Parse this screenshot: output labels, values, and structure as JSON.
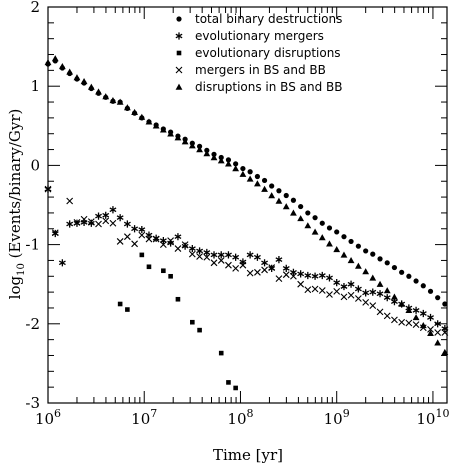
{
  "chart_data": {
    "type": "scatter",
    "xscale": "log",
    "xlim": [
      1000000,
      14000000000
    ],
    "ylim": [
      -3,
      2
    ],
    "xlabel": "Time [yr]",
    "ylabel": "log10 (Events/binary/Gyr)",
    "ylabel_parts": {
      "pre": "log",
      "sub": "10",
      "post": " (Events/binary/Gyr)"
    },
    "x_ticks": [
      {
        "value": 1000000,
        "base": "10",
        "exp": "6"
      },
      {
        "value": 10000000,
        "base": "10",
        "exp": "7"
      },
      {
        "value": 100000000,
        "base": "10",
        "exp": "8"
      },
      {
        "value": 1000000000,
        "base": "10",
        "exp": "9"
      },
      {
        "value": 10000000000,
        "base": "10",
        "exp": "10"
      }
    ],
    "y_ticks": [
      {
        "value": -3,
        "label": "-3"
      },
      {
        "value": -2,
        "label": "-2"
      },
      {
        "value": -1,
        "label": "-1"
      },
      {
        "value": 0,
        "label": "0"
      },
      {
        "value": 1,
        "label": "1"
      },
      {
        "value": 2,
        "label": "2"
      }
    ],
    "legend_position": "top-right",
    "grid": false,
    "series": [
      {
        "name": "total binary destructions",
        "marker": "circle",
        "points": [
          [
            1000000,
            1.28
          ],
          [
            1190000,
            1.32
          ],
          [
            1410000,
            1.23
          ],
          [
            1680000,
            1.16
          ],
          [
            2000000,
            1.09
          ],
          [
            2370000,
            1.04
          ],
          [
            2820000,
            0.97
          ],
          [
            3350000,
            0.91
          ],
          [
            3980000,
            0.86
          ],
          [
            4730000,
            0.81
          ],
          [
            5620000,
            0.8
          ],
          [
            6680000,
            0.72
          ],
          [
            7940000,
            0.66
          ],
          [
            9440000,
            0.6
          ],
          [
            11200000,
            0.55
          ],
          [
            13300000,
            0.51
          ],
          [
            15800000,
            0.46
          ],
          [
            18800000,
            0.42
          ],
          [
            22400000,
            0.37
          ],
          [
            26600000,
            0.33
          ],
          [
            31600000,
            0.28
          ],
          [
            37600000,
            0.24
          ],
          [
            44700000,
            0.19
          ],
          [
            53100000,
            0.14
          ],
          [
            63100000,
            0.1
          ],
          [
            75000000,
            0.07
          ],
          [
            89100000,
            0.02
          ],
          [
            106000000,
            -0.04
          ],
          [
            126000000,
            -0.08
          ],
          [
            150000000,
            -0.14
          ],
          [
            178000000,
            -0.19
          ],
          [
            211000000,
            -0.26
          ],
          [
            251000000,
            -0.32
          ],
          [
            299000000,
            -0.38
          ],
          [
            355000000,
            -0.44
          ],
          [
            422000000,
            -0.52
          ],
          [
            501000000,
            -0.6
          ],
          [
            596000000,
            -0.66
          ],
          [
            708000000,
            -0.73
          ],
          [
            841000000,
            -0.79
          ],
          [
            1000000000,
            -0.84
          ],
          [
            1190000000,
            -0.9
          ],
          [
            1410000000,
            -0.96
          ],
          [
            1680000000,
            -1.02
          ],
          [
            2000000000,
            -1.08
          ],
          [
            2370000000,
            -1.12
          ],
          [
            2820000000,
            -1.18
          ],
          [
            3350000000,
            -1.23
          ],
          [
            3980000000,
            -1.29
          ],
          [
            4730000000,
            -1.35
          ],
          [
            5620000000,
            -1.4
          ],
          [
            6680000000,
            -1.46
          ],
          [
            7940000000,
            -1.52
          ],
          [
            9440000000,
            -1.59
          ],
          [
            11200000000,
            -1.67
          ],
          [
            13300000000,
            -1.75
          ]
        ]
      },
      {
        "name": "evolutionary mergers",
        "marker": "asterisk",
        "points": [
          [
            1000000,
            -0.3
          ],
          [
            1190000,
            -0.86
          ],
          [
            1410000,
            -1.23
          ],
          [
            1680000,
            -0.74
          ],
          [
            2000000,
            -0.73
          ],
          [
            2370000,
            -0.72
          ],
          [
            2820000,
            -0.73
          ],
          [
            3350000,
            -0.64
          ],
          [
            3980000,
            -0.63
          ],
          [
            4730000,
            -0.56
          ],
          [
            5620000,
            -0.66
          ],
          [
            6680000,
            -0.74
          ],
          [
            7940000,
            -0.8
          ],
          [
            9440000,
            -0.81
          ],
          [
            11200000,
            -0.88
          ],
          [
            13300000,
            -0.92
          ],
          [
            15800000,
            -0.95
          ],
          [
            18800000,
            -0.98
          ],
          [
            22400000,
            -0.9
          ],
          [
            26600000,
            -1.02
          ],
          [
            31600000,
            -1.05
          ],
          [
            37600000,
            -1.08
          ],
          [
            44700000,
            -1.1
          ],
          [
            53100000,
            -1.13
          ],
          [
            63100000,
            -1.13
          ],
          [
            75000000,
            -1.13
          ],
          [
            89100000,
            -1.16
          ],
          [
            106000000,
            -1.22
          ],
          [
            126000000,
            -1.13
          ],
          [
            150000000,
            -1.16
          ],
          [
            178000000,
            -1.23
          ],
          [
            211000000,
            -1.3
          ],
          [
            251000000,
            -1.19
          ],
          [
            299000000,
            -1.3
          ],
          [
            355000000,
            -1.35
          ],
          [
            422000000,
            -1.37
          ],
          [
            501000000,
            -1.39
          ],
          [
            596000000,
            -1.4
          ],
          [
            708000000,
            -1.39
          ],
          [
            841000000,
            -1.42
          ],
          [
            1000000000,
            -1.48
          ],
          [
            1190000000,
            -1.53
          ],
          [
            1410000000,
            -1.5
          ],
          [
            1680000000,
            -1.56
          ],
          [
            2000000000,
            -1.61
          ],
          [
            2370000000,
            -1.6
          ],
          [
            2820000000,
            -1.62
          ],
          [
            3350000000,
            -1.67
          ],
          [
            3980000000,
            -1.72
          ],
          [
            4730000000,
            -1.75
          ],
          [
            5620000000,
            -1.8
          ],
          [
            6680000000,
            -1.83
          ],
          [
            7940000000,
            -1.87
          ],
          [
            9440000000,
            -1.92
          ],
          [
            11200000000,
            -2.0
          ],
          [
            13300000000,
            -2.06
          ]
        ]
      },
      {
        "name": "evolutionary disruptions",
        "marker": "square",
        "points": [
          [
            5620000,
            -1.75
          ],
          [
            6680000,
            -1.82
          ],
          [
            9440000,
            -1.13
          ],
          [
            11200000,
            -1.28
          ],
          [
            15800000,
            -1.33
          ],
          [
            18800000,
            -1.4
          ],
          [
            22400000,
            -1.69
          ],
          [
            31600000,
            -1.98
          ],
          [
            37600000,
            -2.08
          ],
          [
            63100000,
            -2.37
          ],
          [
            75000000,
            -2.74
          ],
          [
            89100000,
            -2.81
          ]
        ]
      },
      {
        "name": "mergers in BS and BB",
        "marker": "cross",
        "points": [
          [
            1000000,
            -0.3
          ],
          [
            1190000,
            -0.85
          ],
          [
            1680000,
            -0.45
          ],
          [
            2000000,
            -0.72
          ],
          [
            2370000,
            -0.68
          ],
          [
            2820000,
            -0.71
          ],
          [
            3350000,
            -0.74
          ],
          [
            3980000,
            -0.7
          ],
          [
            4730000,
            -0.73
          ],
          [
            5620000,
            -0.96
          ],
          [
            6680000,
            -0.9
          ],
          [
            7940000,
            -0.99
          ],
          [
            9440000,
            -0.88
          ],
          [
            11200000,
            -0.93
          ],
          [
            13300000,
            -0.93
          ],
          [
            15800000,
            -1.0
          ],
          [
            18800000,
            -0.95
          ],
          [
            22400000,
            -1.05
          ],
          [
            26600000,
            -1.0
          ],
          [
            31600000,
            -1.12
          ],
          [
            37600000,
            -1.15
          ],
          [
            44700000,
            -1.16
          ],
          [
            53100000,
            -1.23
          ],
          [
            63100000,
            -1.2
          ],
          [
            75000000,
            -1.26
          ],
          [
            89100000,
            -1.3
          ],
          [
            106000000,
            -1.26
          ],
          [
            126000000,
            -1.36
          ],
          [
            150000000,
            -1.35
          ],
          [
            178000000,
            -1.32
          ],
          [
            211000000,
            -1.29
          ],
          [
            251000000,
            -1.43
          ],
          [
            299000000,
            -1.38
          ],
          [
            355000000,
            -1.4
          ],
          [
            422000000,
            -1.5
          ],
          [
            501000000,
            -1.57
          ],
          [
            596000000,
            -1.56
          ],
          [
            708000000,
            -1.58
          ],
          [
            841000000,
            -1.63
          ],
          [
            1000000000,
            -1.59
          ],
          [
            1190000000,
            -1.66
          ],
          [
            1410000000,
            -1.64
          ],
          [
            1680000000,
            -1.68
          ],
          [
            2000000000,
            -1.73
          ],
          [
            2370000000,
            -1.77
          ],
          [
            2820000000,
            -1.85
          ],
          [
            3350000000,
            -1.9
          ],
          [
            3980000000,
            -1.95
          ],
          [
            4730000000,
            -1.98
          ],
          [
            5620000000,
            -1.99
          ],
          [
            6680000000,
            -2.01
          ],
          [
            7940000000,
            -2.05
          ],
          [
            9440000000,
            -2.07
          ],
          [
            11200000000,
            -2.11
          ],
          [
            13300000000,
            -2.11
          ]
        ]
      },
      {
        "name": "disruptions in BS and BB",
        "marker": "triangle",
        "points": [
          [
            1000000,
            1.3
          ],
          [
            1190000,
            1.35
          ],
          [
            1410000,
            1.25
          ],
          [
            1680000,
            1.18
          ],
          [
            2000000,
            1.11
          ],
          [
            2370000,
            1.06
          ],
          [
            2820000,
            0.99
          ],
          [
            3350000,
            0.93
          ],
          [
            3980000,
            0.87
          ],
          [
            4730000,
            0.82
          ],
          [
            5620000,
            0.8
          ],
          [
            6680000,
            0.73
          ],
          [
            7940000,
            0.67
          ],
          [
            9440000,
            0.61
          ],
          [
            11200000,
            0.55
          ],
          [
            13300000,
            0.5
          ],
          [
            15800000,
            0.45
          ],
          [
            18800000,
            0.4
          ],
          [
            22400000,
            0.35
          ],
          [
            26600000,
            0.3
          ],
          [
            31600000,
            0.25
          ],
          [
            37600000,
            0.2
          ],
          [
            44700000,
            0.15
          ],
          [
            53100000,
            0.1
          ],
          [
            63100000,
            0.06
          ],
          [
            75000000,
            0.02
          ],
          [
            89100000,
            -0.04
          ],
          [
            106000000,
            -0.11
          ],
          [
            126000000,
            -0.17
          ],
          [
            150000000,
            -0.23
          ],
          [
            178000000,
            -0.3
          ],
          [
            211000000,
            -0.38
          ],
          [
            251000000,
            -0.45
          ],
          [
            299000000,
            -0.52
          ],
          [
            355000000,
            -0.6
          ],
          [
            422000000,
            -0.67
          ],
          [
            501000000,
            -0.76
          ],
          [
            596000000,
            -0.84
          ],
          [
            708000000,
            -0.91
          ],
          [
            841000000,
            -0.99
          ],
          [
            1000000000,
            -1.06
          ],
          [
            1190000000,
            -1.13
          ],
          [
            1410000000,
            -1.2
          ],
          [
            1680000000,
            -1.27
          ],
          [
            2000000000,
            -1.34
          ],
          [
            2370000000,
            -1.42
          ],
          [
            2820000000,
            -1.5
          ],
          [
            3350000000,
            -1.58
          ],
          [
            3980000000,
            -1.66
          ],
          [
            4730000000,
            -1.75
          ],
          [
            5620000000,
            -1.83
          ],
          [
            6680000000,
            -1.92
          ],
          [
            7940000000,
            -2.02
          ],
          [
            9440000000,
            -2.12
          ],
          [
            11200000000,
            -2.24
          ],
          [
            13300000000,
            -2.36
          ]
        ]
      }
    ]
  }
}
